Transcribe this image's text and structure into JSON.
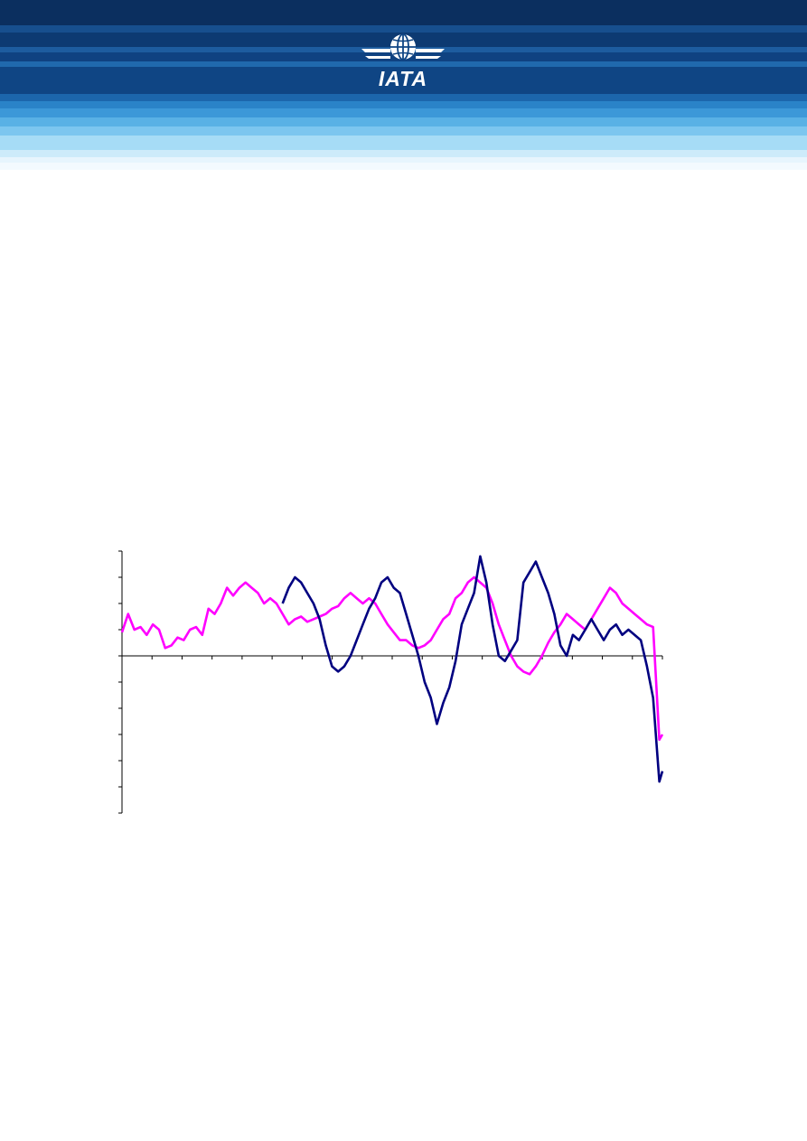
{
  "header": {
    "logo_icon": "globe-wings-icon",
    "logo_text": "IATA",
    "colors": {
      "dark_navy": "#0a2e5e",
      "mid_blue": "#1f6fb5",
      "light_blue": "#9fd7f5"
    }
  },
  "chart_data": {
    "type": "line",
    "x_range": [
      0,
      175
    ],
    "y_range": [
      -30,
      20
    ],
    "x_tick_count": 18,
    "y_tick_step": 5,
    "grid": false,
    "legend": "none",
    "series": [
      {
        "color": "#ff00ff",
        "values": [
          [
            0,
            4.5
          ],
          [
            2,
            8
          ],
          [
            4,
            5
          ],
          [
            6,
            5.5
          ],
          [
            8,
            4
          ],
          [
            10,
            6
          ],
          [
            12,
            5
          ],
          [
            14,
            1.5
          ],
          [
            16,
            2
          ],
          [
            18,
            3.5
          ],
          [
            20,
            3
          ],
          [
            22,
            5
          ],
          [
            24,
            5.5
          ],
          [
            26,
            4
          ],
          [
            28,
            9
          ],
          [
            30,
            8
          ],
          [
            32,
            10
          ],
          [
            34,
            13
          ],
          [
            36,
            11.5
          ],
          [
            38,
            13
          ],
          [
            40,
            14
          ],
          [
            42,
            13
          ],
          [
            44,
            12
          ],
          [
            46,
            10
          ],
          [
            48,
            11
          ],
          [
            50,
            10
          ],
          [
            52,
            8
          ],
          [
            54,
            6
          ],
          [
            56,
            7
          ],
          [
            58,
            7.5
          ],
          [
            60,
            6.5
          ],
          [
            62,
            7
          ],
          [
            64,
            7.5
          ],
          [
            66,
            8
          ],
          [
            68,
            9
          ],
          [
            70,
            9.5
          ],
          [
            72,
            11
          ],
          [
            74,
            12
          ],
          [
            76,
            11
          ],
          [
            78,
            10
          ],
          [
            80,
            11
          ],
          [
            82,
            10
          ],
          [
            84,
            8
          ],
          [
            86,
            6
          ],
          [
            88,
            4.5
          ],
          [
            90,
            3
          ],
          [
            92,
            3
          ],
          [
            94,
            2
          ],
          [
            96,
            1.5
          ],
          [
            98,
            2
          ],
          [
            100,
            3
          ],
          [
            102,
            5
          ],
          [
            104,
            7
          ],
          [
            106,
            8
          ],
          [
            108,
            11
          ],
          [
            110,
            12
          ],
          [
            112,
            14
          ],
          [
            114,
            15
          ],
          [
            116,
            14
          ],
          [
            118,
            13
          ],
          [
            120,
            10
          ],
          [
            122,
            6
          ],
          [
            124,
            3
          ],
          [
            126,
            0
          ],
          [
            128,
            -2
          ],
          [
            130,
            -3
          ],
          [
            132,
            -3.5
          ],
          [
            134,
            -2
          ],
          [
            136,
            0
          ],
          [
            138,
            2.5
          ],
          [
            140,
            4.5
          ],
          [
            142,
            6
          ],
          [
            144,
            8
          ],
          [
            146,
            7
          ],
          [
            148,
            6
          ],
          [
            150,
            5
          ],
          [
            152,
            7
          ],
          [
            154,
            9
          ],
          [
            156,
            11
          ],
          [
            158,
            13
          ],
          [
            160,
            12
          ],
          [
            162,
            10
          ],
          [
            164,
            9
          ],
          [
            166,
            8
          ],
          [
            168,
            7
          ],
          [
            170,
            6
          ],
          [
            172,
            5.5
          ],
          [
            174,
            -16
          ],
          [
            175,
            -15
          ]
        ]
      },
      {
        "color": "#000080",
        "values": [
          [
            52,
            10
          ],
          [
            54,
            13
          ],
          [
            56,
            15
          ],
          [
            58,
            14
          ],
          [
            60,
            12
          ],
          [
            62,
            10
          ],
          [
            64,
            7
          ],
          [
            66,
            2
          ],
          [
            68,
            -2
          ],
          [
            70,
            -3
          ],
          [
            72,
            -2
          ],
          [
            74,
            0
          ],
          [
            76,
            3
          ],
          [
            78,
            6
          ],
          [
            80,
            9
          ],
          [
            82,
            11
          ],
          [
            84,
            14
          ],
          [
            86,
            15
          ],
          [
            88,
            13
          ],
          [
            90,
            12
          ],
          [
            92,
            8
          ],
          [
            94,
            4
          ],
          [
            96,
            0
          ],
          [
            98,
            -5
          ],
          [
            100,
            -8
          ],
          [
            102,
            -13
          ],
          [
            104,
            -9
          ],
          [
            106,
            -6
          ],
          [
            108,
            -1
          ],
          [
            110,
            6
          ],
          [
            112,
            9
          ],
          [
            114,
            12
          ],
          [
            116,
            19
          ],
          [
            118,
            14
          ],
          [
            120,
            6
          ],
          [
            122,
            0
          ],
          [
            124,
            -1
          ],
          [
            126,
            1
          ],
          [
            128,
            3
          ],
          [
            130,
            14
          ],
          [
            132,
            16
          ],
          [
            134,
            18
          ],
          [
            136,
            15
          ],
          [
            138,
            12
          ],
          [
            140,
            8
          ],
          [
            142,
            2
          ],
          [
            144,
            0
          ],
          [
            146,
            4
          ],
          [
            148,
            3
          ],
          [
            150,
            5
          ],
          [
            152,
            7
          ],
          [
            154,
            5
          ],
          [
            156,
            3
          ],
          [
            158,
            5
          ],
          [
            160,
            6
          ],
          [
            162,
            4
          ],
          [
            164,
            5
          ],
          [
            166,
            4
          ],
          [
            168,
            3
          ],
          [
            170,
            -2
          ],
          [
            172,
            -8
          ],
          [
            174,
            -24
          ],
          [
            175,
            -22
          ]
        ]
      }
    ]
  },
  "footer": {
    "link_text": ""
  }
}
